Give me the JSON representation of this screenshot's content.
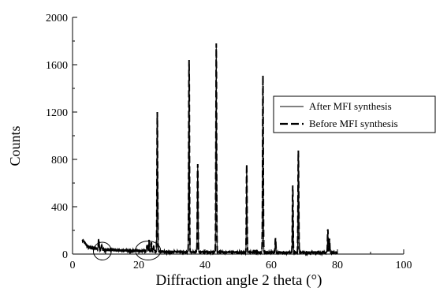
{
  "chart_data": {
    "type": "line",
    "title": "",
    "xlabel": "Diffraction angle 2 theta (°)",
    "ylabel": "Counts",
    "xlim": [
      0,
      100
    ],
    "ylim": [
      0,
      2000
    ],
    "x_ticks": [
      0,
      20,
      40,
      60,
      80,
      100
    ],
    "y_ticks": [
      0,
      400,
      800,
      1200,
      1600,
      2000
    ],
    "grid": false,
    "legend_position": "right",
    "legend": [
      "After MFI synthesis",
      "Before MFI synthesis"
    ],
    "peaks_2theta_counts": [
      [
        7.9,
        130
      ],
      [
        8.8,
        75
      ],
      [
        22.5,
        75
      ],
      [
        23.1,
        120
      ],
      [
        23.8,
        100
      ],
      [
        24.5,
        70
      ],
      [
        25.6,
        1200
      ],
      [
        35.2,
        1640
      ],
      [
        37.8,
        760
      ],
      [
        43.4,
        1780
      ],
      [
        52.6,
        760
      ],
      [
        57.5,
        1510
      ],
      [
        61.3,
        135
      ],
      [
        66.5,
        580
      ],
      [
        68.2,
        875
      ],
      [
        77.1,
        210
      ],
      [
        77.6,
        130
      ]
    ],
    "series": [
      {
        "name": "After MFI synthesis",
        "style": "solid",
        "baseline": [
          [
            3,
            120
          ],
          [
            4,
            85
          ],
          [
            5,
            60
          ],
          [
            8,
            45
          ],
          [
            12,
            35
          ],
          [
            18,
            30
          ],
          [
            22,
            25
          ],
          [
            26,
            22
          ],
          [
            30,
            20
          ],
          [
            36,
            18
          ],
          [
            44,
            17
          ],
          [
            52,
            16
          ],
          [
            60,
            15
          ],
          [
            70,
            14
          ],
          [
            80,
            12
          ]
        ]
      },
      {
        "name": "Before MFI synthesis",
        "style": "dashed",
        "baseline": [
          [
            3,
            115
          ],
          [
            4,
            80
          ],
          [
            5,
            55
          ],
          [
            8,
            40
          ],
          [
            12,
            32
          ],
          [
            18,
            28
          ],
          [
            22,
            24
          ],
          [
            26,
            20
          ],
          [
            30,
            18
          ],
          [
            36,
            16
          ],
          [
            44,
            15
          ],
          [
            52,
            14
          ],
          [
            60,
            13
          ],
          [
            70,
            12
          ],
          [
            80,
            10
          ]
        ]
      }
    ],
    "annotations": [
      {
        "type": "ellipse",
        "x_center": 9,
        "y_center": 25,
        "x_radius": 2.7,
        "y_radius": 75
      },
      {
        "type": "ellipse",
        "x_center": 22.8,
        "y_center": 30,
        "x_radius": 3.8,
        "y_radius": 80
      }
    ]
  }
}
